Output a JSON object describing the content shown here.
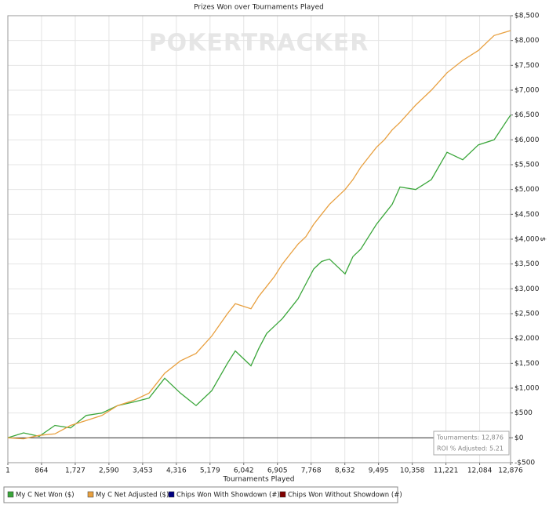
{
  "chart_data": {
    "type": "line",
    "title": "Prizes Won over Tournaments Played",
    "x_label": "Tournaments Played",
    "y_label": "$",
    "watermark": "POKERTRACKER",
    "info_box": [
      "Tournaments: 12,876",
      "ROI % Adjusted: 5.21"
    ],
    "grid": true,
    "x": [
      1,
      403,
      804,
      1206,
      1608,
      2010,
      2411,
      2813,
      3215,
      3617,
      4018,
      4420,
      4822,
      5223,
      5625,
      5826,
      6027,
      6228,
      6428,
      6629,
      6830,
      7031,
      7232,
      7433,
      7634,
      7835,
      8035,
      8236,
      8437,
      8638,
      8839,
      9040,
      9240,
      9441,
      9642,
      9843,
      10044,
      10446,
      10847,
      11249,
      11651,
      12053,
      12454,
      12876
    ],
    "series": [
      {
        "name": "My C Net Won ($)",
        "color": "#3aa63a",
        "values": [
          0,
          100,
          30,
          250,
          200,
          450,
          500,
          650,
          720,
          800,
          1200,
          900,
          650,
          950,
          1500,
          1750,
          1600,
          1450,
          1800,
          2100,
          2250,
          2400,
          2600,
          2800,
          3100,
          3400,
          3550,
          3600,
          3450,
          3300,
          3650,
          3800,
          4050,
          4300,
          4500,
          4700,
          5050,
          5000,
          5200,
          5750,
          5600,
          5900,
          6000,
          6500
        ]
      },
      {
        "name": "My C Net Adjusted ($)",
        "color": "#e8a040",
        "values": [
          0,
          -20,
          50,
          80,
          250,
          350,
          450,
          650,
          750,
          900,
          1300,
          1550,
          1700,
          2050,
          2500,
          2700,
          2650,
          2600,
          2850,
          3050,
          3250,
          3500,
          3700,
          3900,
          4050,
          4300,
          4500,
          4700,
          4850,
          5000,
          5200,
          5450,
          5650,
          5850,
          6000,
          6200,
          6350,
          6700,
          7000,
          7350,
          7600,
          7800,
          8100,
          8200
        ]
      },
      {
        "name": "Chips Won With Showdown (#)",
        "color": "#000080",
        "values": [
          null,
          null,
          null,
          null,
          null,
          null,
          null,
          null,
          null,
          null,
          null,
          null,
          null,
          null,
          null,
          null,
          null,
          null,
          null,
          null,
          null,
          null,
          null,
          null,
          null,
          null,
          null,
          null,
          null,
          null,
          null,
          null,
          null,
          null,
          null,
          null,
          null,
          null,
          null,
          null,
          null,
          null,
          null,
          null
        ]
      },
      {
        "name": "Chips Won Without Showdown (#)",
        "color": "#800000",
        "values": [
          null,
          null,
          null,
          null,
          null,
          null,
          null,
          null,
          null,
          null,
          null,
          null,
          null,
          null,
          null,
          null,
          null,
          null,
          null,
          null,
          null,
          null,
          null,
          null,
          null,
          null,
          null,
          null,
          null,
          null,
          null,
          null,
          null,
          null,
          null,
          null,
          null,
          null,
          null,
          null,
          null,
          null,
          null,
          null
        ]
      }
    ],
    "xlim": [
      1,
      12876
    ],
    "xticks": [
      1,
      864,
      {
        "value": 1727,
        "label": "1,727"
      },
      {
        "value": 2590,
        "label": "2,590"
      },
      {
        "value": 3453,
        "label": "3,453"
      },
      {
        "value": 4316,
        "label": "4,316"
      },
      {
        "value": 5179,
        "label": "5,179"
      },
      {
        "value": 6042,
        "label": "6,042"
      },
      {
        "value": 6905,
        "label": "6,905"
      },
      {
        "value": 7768,
        "label": "7,768"
      },
      {
        "value": 8632,
        "label": "8,632"
      },
      {
        "value": 9495,
        "label": "9,495"
      },
      {
        "value": 10358,
        "label": "10,358"
      },
      {
        "value": 11221,
        "label": "11,221"
      },
      {
        "value": 12084,
        "label": "12,084"
      },
      {
        "value": 12876,
        "label": "12,876"
      }
    ],
    "ylim": [
      -500,
      8500
    ],
    "yticks": [
      {
        "value": -500,
        "label": "-$500"
      },
      {
        "value": 0,
        "label": "$0"
      },
      {
        "value": 500,
        "label": "$500"
      },
      {
        "value": 1000,
        "label": "$1,000"
      },
      {
        "value": 1500,
        "label": "$1,500"
      },
      {
        "value": 2000,
        "label": "$2,000"
      },
      {
        "value": 2500,
        "label": "$2,500"
      },
      {
        "value": 3000,
        "label": "$3,000"
      },
      {
        "value": 3500,
        "label": "$3,500"
      },
      {
        "value": 4000,
        "label": "$4,000"
      },
      {
        "value": 4500,
        "label": "$4,500"
      },
      {
        "value": 5000,
        "label": "$5,000"
      },
      {
        "value": 5500,
        "label": "$5,500"
      },
      {
        "value": 6000,
        "label": "$6,000"
      },
      {
        "value": 6500,
        "label": "$6,500"
      },
      {
        "value": 7000,
        "label": "$7,000"
      },
      {
        "value": 7500,
        "label": "$7,500"
      },
      {
        "value": 8000,
        "label": "$8,000"
      },
      {
        "value": 8500,
        "label": "$8,500"
      }
    ]
  }
}
